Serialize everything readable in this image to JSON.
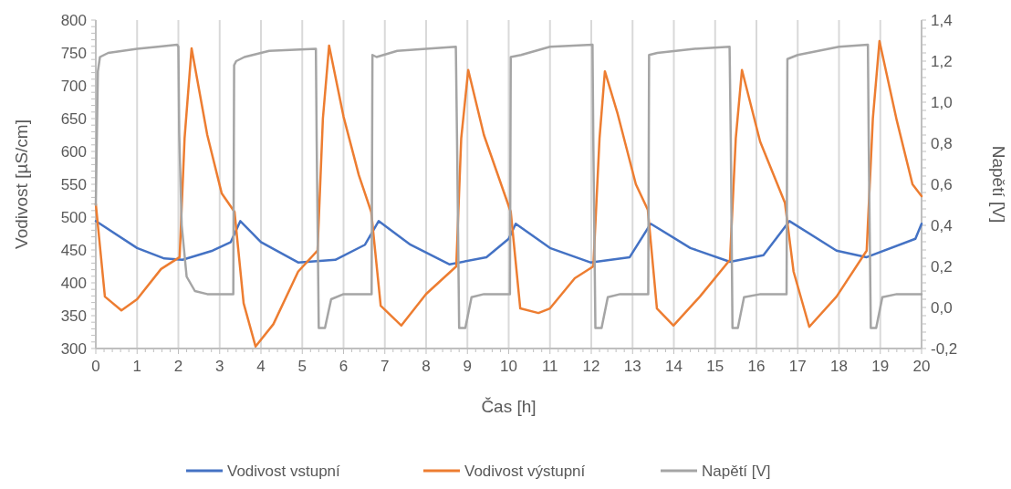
{
  "chart_data": {
    "type": "line",
    "xlabel": "Čas [h]",
    "ylabel": "Vodivost [µS/cm]",
    "y2label": "Napětí [V]",
    "xlim": [
      0,
      20
    ],
    "xticks": [
      0,
      1,
      2,
      3,
      4,
      5,
      6,
      7,
      8,
      9,
      10,
      11,
      12,
      13,
      14,
      15,
      16,
      17,
      18,
      19,
      20
    ],
    "ylim": [
      300,
      800
    ],
    "yticks": [
      300,
      350,
      400,
      450,
      500,
      550,
      600,
      650,
      700,
      750,
      800
    ],
    "y2lim": [
      -0.2,
      1.4
    ],
    "y2ticks": [
      {
        "value": -0.2,
        "label": "-0,2"
      },
      {
        "value": 0,
        "label": "0,0"
      },
      {
        "value": 0.2,
        "label": "0,2"
      },
      {
        "value": 0.4,
        "label": "0,4"
      },
      {
        "value": 0.6,
        "label": "0,6"
      },
      {
        "value": 0.8,
        "label": "0,8"
      },
      {
        "value": 1.0,
        "label": "1,0"
      },
      {
        "value": 1.2,
        "label": "1,2"
      },
      {
        "value": 1.4,
        "label": "1,4"
      }
    ],
    "grid": "x",
    "legend": "bottom",
    "marker": "none",
    "line_style": "solid",
    "series": [
      {
        "name": "Vodivost vstupní",
        "color": "#4472c4",
        "x": [
          0,
          1,
          1.66,
          2.1,
          2.83,
          3.27,
          3.5,
          4,
          4.9,
          5.8,
          6.52,
          6.85,
          7.62,
          8.57,
          9.46,
          10,
          10.17,
          11,
          11.98,
          12.93,
          13.44,
          14.4,
          15.36,
          16.17,
          16.8,
          17.94,
          18.67,
          19.85,
          20
        ],
        "values": [
          494,
          453,
          437,
          435,
          449,
          462,
          494,
          462,
          431,
          435,
          458,
          494,
          458,
          428,
          439,
          467,
          490,
          453,
          431,
          439,
          490,
          453,
          432,
          442,
          494,
          449,
          439,
          467,
          490
        ]
      },
      {
        "name": "Vodivost výstupní",
        "color": "#ed7d31",
        "x": [
          0,
          0.22,
          0.62,
          1,
          1.58,
          2.03,
          2.15,
          2.32,
          2.7,
          3.05,
          3.36,
          3.58,
          3.87,
          4.3,
          4.9,
          5.37,
          5.5,
          5.65,
          6,
          6.37,
          6.67,
          6.9,
          7.4,
          8,
          8.73,
          8.85,
          9.02,
          9.4,
          10.05,
          10.28,
          10.72,
          11,
          11.6,
          12.05,
          12.2,
          12.33,
          12.64,
          13.08,
          13.37,
          13.59,
          13.99,
          14.63,
          15.36,
          15.5,
          15.65,
          16.09,
          16.69,
          16.9,
          17.28,
          17.94,
          18.67,
          18.82,
          18.98,
          19.4,
          19.78,
          20
        ],
        "values": [
          520,
          379,
          358,
          375,
          421,
          439,
          620,
          757,
          625,
          536,
          508,
          369,
          303,
          337,
          417,
          449,
          650,
          761,
          653,
          564,
          508,
          365,
          335,
          383,
          425,
          620,
          724,
          625,
          508,
          361,
          354,
          361,
          407,
          425,
          620,
          722,
          657,
          550,
          511,
          361,
          335,
          379,
          435,
          620,
          724,
          615,
          522,
          417,
          333,
          379,
          449,
          650,
          768,
          647,
          550,
          532
        ]
      },
      {
        "name": "Napětí [V]",
        "color": "#a5a5a5",
        "axis": "y2",
        "x": [
          0,
          0.05,
          0.1,
          0.3,
          1,
          1.5,
          1.97,
          2,
          2.02,
          2.08,
          2.2,
          2.4,
          2.7,
          3.33,
          3.35,
          3.4,
          3.6,
          4.2,
          5.33,
          5.35,
          5.4,
          5.55,
          5.7,
          6,
          6.68,
          6.7,
          6.8,
          7.3,
          8,
          8.72,
          8.75,
          8.8,
          8.95,
          9.1,
          9.4,
          10.03,
          10.05,
          10.3,
          11,
          12.03,
          12.05,
          12.1,
          12.25,
          12.4,
          12.7,
          13.38,
          13.4,
          13.6,
          14.5,
          15.35,
          15.38,
          15.42,
          15.55,
          15.7,
          16.1,
          16.73,
          16.75,
          17,
          18,
          18.7,
          18.72,
          18.77,
          18.9,
          19.05,
          19.4,
          20
        ],
        "values": [
          0.5,
          1.15,
          1.22,
          1.24,
          1.26,
          1.27,
          1.28,
          1.27,
          0.85,
          0.4,
          0.15,
          0.08,
          0.065,
          0.065,
          1.18,
          1.2,
          1.22,
          1.25,
          1.26,
          0.8,
          -0.1,
          -0.1,
          0.04,
          0.065,
          0.065,
          1.23,
          1.22,
          1.25,
          1.26,
          1.27,
          0.8,
          -0.1,
          -0.1,
          0.05,
          0.065,
          0.065,
          1.22,
          1.23,
          1.27,
          1.28,
          0.8,
          -0.1,
          -0.1,
          0.05,
          0.065,
          0.065,
          1.23,
          1.24,
          1.26,
          1.27,
          0.8,
          -0.1,
          -0.1,
          0.05,
          0.065,
          0.065,
          1.21,
          1.23,
          1.27,
          1.28,
          0.8,
          -0.1,
          -0.1,
          0.05,
          0.065,
          0.065
        ]
      }
    ]
  }
}
